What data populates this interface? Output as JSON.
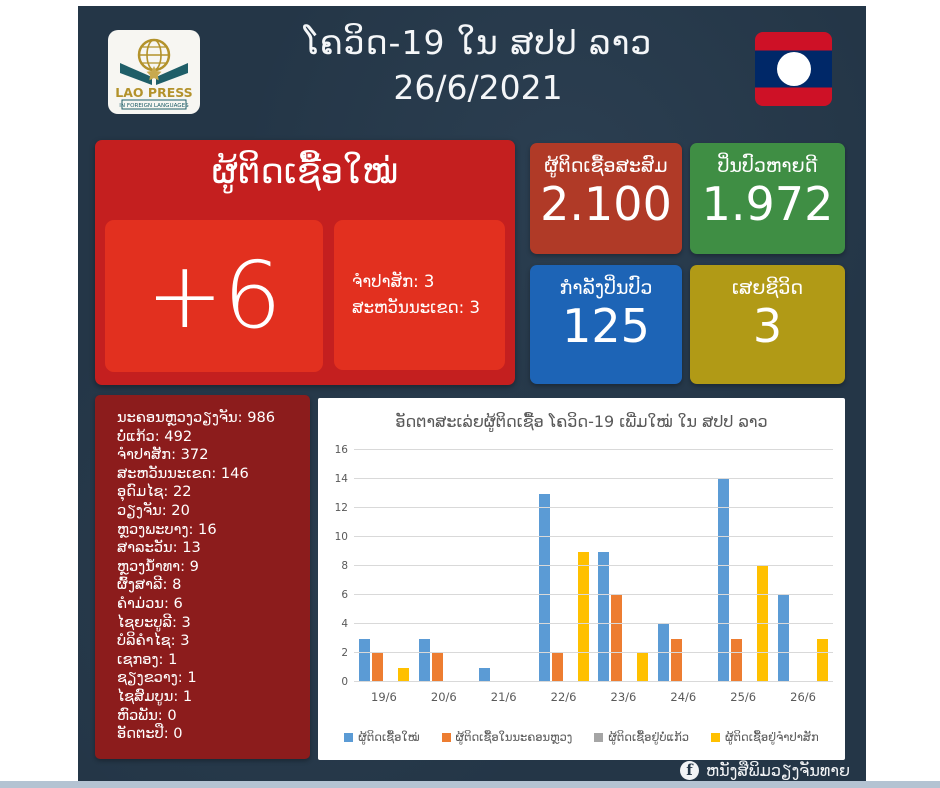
{
  "header": {
    "logo": {
      "icon": "lao-press-globe-book-logo",
      "line1": "LAO PRESS",
      "line2": "IN FOREIGN LANGUAGES"
    },
    "title_line1": "ໂຄວິດ-19 ໃນ ສປປ ລາວ",
    "title_line2": "26/6/2021",
    "flag": "laos-flag"
  },
  "new_cases": {
    "title": "ຜູ້ຕິດເຊື້ອໃໝ່",
    "count": "+6",
    "breakdown": [
      {
        "label": "ຈຳປາສັກ",
        "value": "3"
      },
      {
        "label": "ສະຫວັນນະເຂດ",
        "value": "3"
      }
    ]
  },
  "stat_cards": {
    "cumulative": {
      "label": "ຜູ້ຕິດເຊື້ອສະສົມ",
      "value": "2.100",
      "color": "#b03a27"
    },
    "recovered": {
      "label": "ປິ່ນປົວຫາຍດີ",
      "value": "1.972",
      "color": "#3f8e44"
    },
    "treating": {
      "label": "ກຳລັງປິ່ນປົວ",
      "value": "125",
      "color": "#1d64b6"
    },
    "deaths": {
      "label": "ເສຍຊີວິດ",
      "value": "3",
      "color": "#b19a16"
    }
  },
  "province_totals": [
    {
      "label": "ນະຄອນຫຼວງວຽງຈັນ",
      "value": "986"
    },
    {
      "label": "ບໍ່ແກ້ວ",
      "value": "492"
    },
    {
      "label": "ຈຳປາສັກ",
      "value": "372"
    },
    {
      "label": "ສະຫວັນນະເຂດ",
      "value": "146"
    },
    {
      "label": "ອຸດົມໄຊ",
      "value": "22"
    },
    {
      "label": "ວຽງຈັນ",
      "value": "20"
    },
    {
      "label": "ຫຼວງພະບາງ",
      "value": "16"
    },
    {
      "label": "ສາລະວັນ",
      "value": "13"
    },
    {
      "label": "ຫຼວງນ້ຳທາ",
      "value": "9"
    },
    {
      "label": "ຜົ້ງສາລີ",
      "value": "8"
    },
    {
      "label": "ຄຳມ່ວນ",
      "value": "6"
    },
    {
      "label": "ໄຊຍະບູລີ",
      "value": "3"
    },
    {
      "label": "ບໍລິຄຳໄຊ",
      "value": "3"
    },
    {
      "label": "ເຊກອງ",
      "value": "1"
    },
    {
      "label": "ຊຽງຂວາງ",
      "value": "1"
    },
    {
      "label": "ໄຊສົມບູນ",
      "value": "1"
    },
    {
      "label": "ຫົວພັນ",
      "value": "0"
    },
    {
      "label": "ອັດຕະປື",
      "value": "0"
    }
  ],
  "chart_data": {
    "type": "bar",
    "title": "ອັດຕາສະເລ່ຍຜູ້ຕິດເຊື້ອ ໂຄວິດ-19 ເພີ່ມໃໝ່ ໃນ ສປປ ລາວ",
    "categories": [
      "19/6",
      "20/6",
      "21/6",
      "22/6",
      "23/6",
      "24/6",
      "25/6",
      "26/6"
    ],
    "series": [
      {
        "name": "ຜູ້ຕິດເຊື້ອໃໝ່",
        "color": "#5b9bd5",
        "values": [
          3,
          3,
          1,
          13,
          9,
          4,
          14,
          6
        ]
      },
      {
        "name": "ຜູ້ຕິດເຊື້ອໃນນະຄອນຫຼວງ",
        "color": "#ed7d31",
        "values": [
          2,
          2,
          0,
          2,
          6,
          3,
          3,
          0
        ]
      },
      {
        "name": "ຜູ້ຕິດເຊື້ອຢູ່ບໍ່ແກ້ວ",
        "color": "#a5a5a5",
        "values": [
          0,
          0,
          0,
          0,
          0,
          0,
          0,
          0
        ]
      },
      {
        "name": "ຜູ້ຕິດເຊື້ອຢູ່ຈຳປາສັກ",
        "color": "#ffc000",
        "values": [
          1,
          0,
          0,
          9,
          2,
          0,
          8,
          3
        ]
      }
    ],
    "xlabel": "",
    "ylabel": "",
    "ylim": [
      0,
      16
    ],
    "ytick_step": 2,
    "grid": true,
    "legend_position": "bottom"
  },
  "footer": {
    "icon": "facebook-icon",
    "icon_glyph": "f",
    "text": "ຫນັງສືພິມວຽງຈັນທາຍ"
  },
  "colors": {
    "page_border": "#ffffff",
    "background": "#243647",
    "new_cases_card": "#c41f1f",
    "new_cases_inner": "#e2301f",
    "province_panel": "#8c1c1c",
    "bottom_strip": "#b4c3d2",
    "flag_red": "#ce1126",
    "flag_blue": "#002868"
  }
}
